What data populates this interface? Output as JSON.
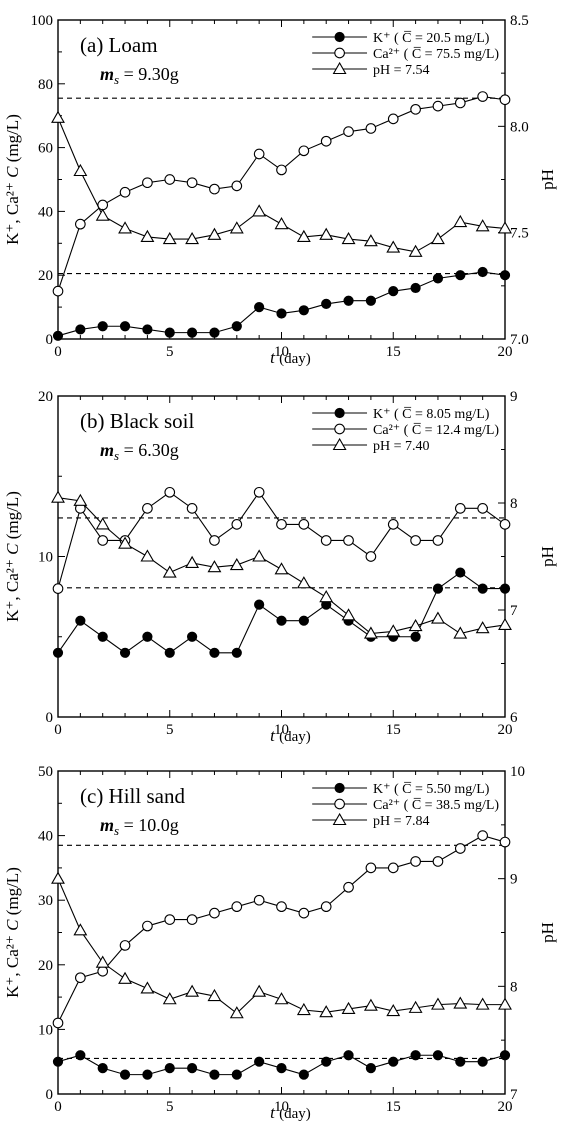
{
  "chart_data": [
    {
      "type": "line",
      "panel_label": "(a)",
      "title": "Loam",
      "ms_symbol": "m",
      "ms_sub": "s",
      "ms_value": "= 9.30g",
      "xlabel": {
        "var": "t",
        "unit": "(day)"
      },
      "ylabel_left": {
        "ions": "K⁺, Ca²⁺",
        "var": "C",
        "unit": "(mg/L)"
      },
      "ylabel_right": "pH",
      "xlim": [
        0,
        20
      ],
      "ylim_left": [
        0,
        100
      ],
      "ylim_right": [
        7.0,
        8.5
      ],
      "xticks": [
        "0",
        "5",
        "10",
        "15",
        "20"
      ],
      "yticks_left": [
        "0",
        "20",
        "40",
        "60",
        "80",
        "100"
      ],
      "yticks_right": [
        "7.0",
        "7.5",
        "8.0",
        "8.5"
      ],
      "x": [
        0,
        1,
        2,
        3,
        4,
        5,
        6,
        7,
        8,
        9,
        10,
        11,
        12,
        13,
        14,
        15,
        16,
        17,
        18,
        19,
        20
      ],
      "series": [
        {
          "legend": "K⁺ ( C̅ = 20.5 mg/L)",
          "axis": "left",
          "marker": "filled-circle",
          "values": [
            1,
            3,
            4,
            4,
            3,
            2,
            2,
            2,
            4,
            10,
            8,
            9,
            11,
            12,
            12,
            15,
            16,
            19,
            20,
            21,
            20
          ],
          "mean": 20.5
        },
        {
          "legend": "Ca²⁺ ( C̅ = 75.5 mg/L)",
          "axis": "left",
          "marker": "open-circle",
          "values": [
            15,
            36,
            42,
            46,
            49,
            50,
            49,
            47,
            48,
            58,
            53,
            59,
            62,
            65,
            66,
            69,
            72,
            73,
            74,
            76,
            75
          ],
          "mean": 75.5
        },
        {
          "legend": "pH = 7.54",
          "axis": "right",
          "marker": "open-triangle",
          "values": [
            8.04,
            7.79,
            7.58,
            7.52,
            7.48,
            7.47,
            7.47,
            7.49,
            7.52,
            7.6,
            7.54,
            7.48,
            7.49,
            7.47,
            7.46,
            7.43,
            7.41,
            7.47,
            7.55,
            7.53,
            7.52
          ]
        }
      ]
    },
    {
      "type": "line",
      "panel_label": "(b)",
      "title": "Black soil",
      "ms_symbol": "m",
      "ms_sub": "s",
      "ms_value": "= 6.30g",
      "xlabel": {
        "var": "t",
        "unit": "(day)"
      },
      "ylabel_left": {
        "ions": "K⁺, Ca²⁺",
        "var": "C",
        "unit": "(mg/L)"
      },
      "ylabel_right": "pH",
      "xlim": [
        0,
        20
      ],
      "ylim_left": [
        0,
        20
      ],
      "ylim_right": [
        6,
        9
      ],
      "xticks": [
        "0",
        "5",
        "10",
        "15",
        "20"
      ],
      "yticks_left": [
        "0",
        "10",
        "20"
      ],
      "yticks_right": [
        "6",
        "7",
        "8",
        "9"
      ],
      "x": [
        0,
        1,
        2,
        3,
        4,
        5,
        6,
        7,
        8,
        9,
        10,
        11,
        12,
        13,
        14,
        15,
        16,
        17,
        18,
        19,
        20
      ],
      "series": [
        {
          "legend": "K⁺ ( C̅ = 8.05 mg/L)",
          "axis": "left",
          "marker": "filled-circle",
          "values": [
            4,
            6,
            5,
            4,
            5,
            4,
            5,
            4,
            4,
            7,
            6,
            6,
            7,
            6,
            5,
            5,
            5,
            8,
            9,
            8,
            8
          ],
          "mean": 8.05
        },
        {
          "legend": "Ca²⁺ ( C̅ = 12.4 mg/L)",
          "axis": "left",
          "marker": "open-circle",
          "values": [
            8,
            13,
            11,
            11,
            13,
            14,
            13,
            11,
            12,
            14,
            12,
            12,
            11,
            11,
            10,
            12,
            11,
            11,
            13,
            13,
            12
          ],
          "mean": 12.4
        },
        {
          "legend": "pH = 7.40",
          "axis": "right",
          "marker": "open-triangle",
          "values": [
            8.05,
            8.02,
            7.8,
            7.62,
            7.5,
            7.35,
            7.44,
            7.4,
            7.42,
            7.5,
            7.38,
            7.25,
            7.12,
            6.95,
            6.78,
            6.8,
            6.85,
            6.92,
            6.78,
            6.83,
            6.86
          ]
        }
      ]
    },
    {
      "type": "line",
      "panel_label": "(c)",
      "title": "Hill sand",
      "ms_symbol": "m",
      "ms_sub": "s",
      "ms_value": "= 10.0g",
      "xlabel": {
        "var": "t",
        "unit": "(day)"
      },
      "ylabel_left": {
        "ions": "K⁺, Ca²⁺",
        "var": "C",
        "unit": "(mg/L)"
      },
      "ylabel_right": "pH",
      "xlim": [
        0,
        20
      ],
      "ylim_left": [
        0,
        50
      ],
      "ylim_right": [
        7,
        10
      ],
      "xticks": [
        "0",
        "5",
        "10",
        "15",
        "20"
      ],
      "yticks_left": [
        "0",
        "10",
        "20",
        "30",
        "40",
        "50"
      ],
      "yticks_right": [
        "7",
        "8",
        "9",
        "10"
      ],
      "x": [
        0,
        1,
        2,
        3,
        4,
        5,
        6,
        7,
        8,
        9,
        10,
        11,
        12,
        13,
        14,
        15,
        16,
        17,
        18,
        19,
        20
      ],
      "series": [
        {
          "legend": "K⁺ ( C̅ = 5.50 mg/L)",
          "axis": "left",
          "marker": "filled-circle",
          "values": [
            5,
            6,
            4,
            3,
            3,
            4,
            4,
            3,
            3,
            5,
            4,
            3,
            5,
            6,
            4,
            5,
            6,
            6,
            5,
            5,
            6
          ],
          "mean": 5.5
        },
        {
          "legend": "Ca²⁺ ( C̅ = 38.5 mg/L)",
          "axis": "left",
          "marker": "open-circle",
          "values": [
            11,
            18,
            19,
            23,
            26,
            27,
            27,
            28,
            29,
            30,
            29,
            28,
            29,
            32,
            35,
            35,
            36,
            36,
            38,
            40,
            39
          ],
          "mean": 38.5
        },
        {
          "legend": "pH = 7.84",
          "axis": "right",
          "marker": "open-triangle",
          "values": [
            9.0,
            8.52,
            8.22,
            8.07,
            7.98,
            7.88,
            7.95,
            7.91,
            7.75,
            7.95,
            7.88,
            7.78,
            7.76,
            7.79,
            7.82,
            7.77,
            7.8,
            7.83,
            7.84,
            7.83,
            7.83
          ]
        }
      ]
    }
  ]
}
